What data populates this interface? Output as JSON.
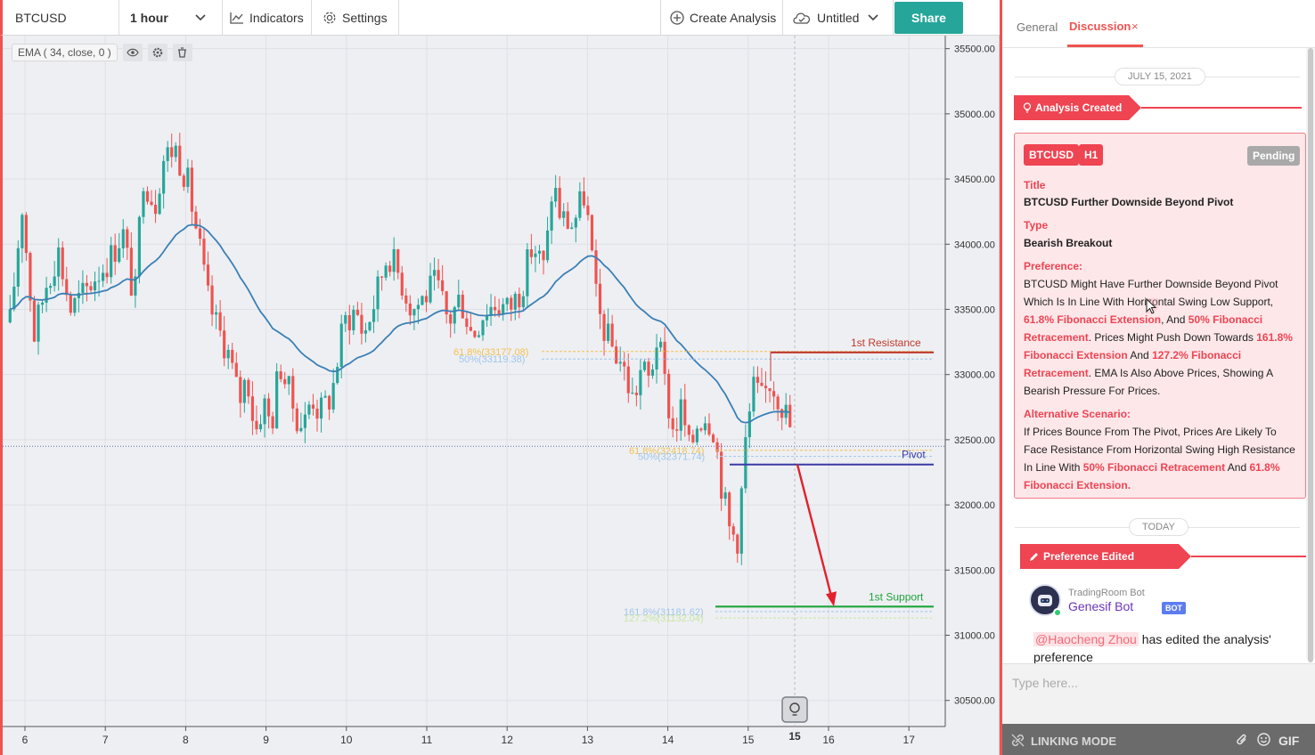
{
  "toolbar": {
    "symbol": "BTCUSD",
    "interval": "1 hour",
    "indicators_label": "Indicators",
    "settings_label": "Settings",
    "create_analysis_label": "Create Analysis",
    "layout_name": "Untitled",
    "share_label": "Share"
  },
  "indicator_legend": {
    "ema_label": "EMA ( 34, close, 0 )"
  },
  "chart_data": {
    "type": "candlestick",
    "symbol": "BTCUSD",
    "interval": "1 hour",
    "price_axis_ticks": [
      "35500.00",
      "35000.00",
      "34500.00",
      "34000.00",
      "33500.00",
      "33000.00",
      "32500.00",
      "32000.00",
      "31500.00",
      "31000.00",
      "30500.00"
    ],
    "price_axis_values": [
      35500,
      35000,
      34500,
      34000,
      33500,
      33000,
      32500,
      32000,
      31500,
      31000,
      30500
    ],
    "x_axis_ticks": [
      "6",
      "7",
      "8",
      "9",
      "10",
      "11",
      "12",
      "13",
      "14",
      "15",
      "16",
      "17"
    ],
    "x_axis_highlight": "15",
    "ylim": [
      30300,
      35600
    ],
    "ohlc_path": [
      [
        0,
        33400
      ],
      [
        3,
        34300
      ],
      [
        6,
        33300
      ],
      [
        9,
        33700
      ],
      [
        12,
        33950
      ],
      [
        15,
        33500
      ],
      [
        18,
        33600
      ],
      [
        21,
        33750
      ],
      [
        25,
        33900
      ],
      [
        28,
        34100
      ],
      [
        31,
        33550
      ],
      [
        33,
        34550
      ],
      [
        36,
        34300
      ],
      [
        38,
        34650
      ],
      [
        41,
        34750
      ],
      [
        44,
        34500
      ],
      [
        47,
        34000
      ],
      [
        49,
        33600
      ],
      [
        51,
        33400
      ],
      [
        54,
        33200
      ],
      [
        57,
        32800
      ],
      [
        59,
        33000
      ],
      [
        61,
        32550
      ],
      [
        63,
        32800
      ],
      [
        65,
        32600
      ],
      [
        67,
        33100
      ],
      [
        69,
        32900
      ],
      [
        71,
        32700
      ],
      [
        73,
        32600
      ],
      [
        75,
        32850
      ],
      [
        77,
        32700
      ],
      [
        80,
        32850
      ],
      [
        83,
        33400
      ],
      [
        86,
        33500
      ],
      [
        88,
        33300
      ],
      [
        91,
        33600
      ],
      [
        94,
        33950
      ],
      [
        97,
        33750
      ],
      [
        100,
        33500
      ],
      [
        103,
        33600
      ],
      [
        106,
        33700
      ],
      [
        109,
        33400
      ],
      [
        112,
        33600
      ],
      [
        115,
        33300
      ],
      [
        118,
        33500
      ],
      [
        121,
        33550
      ],
      [
        124,
        33500
      ],
      [
        127,
        33650
      ],
      [
        130,
        34000
      ],
      [
        133,
        33800
      ],
      [
        135,
        34500
      ],
      [
        137,
        34200
      ],
      [
        140,
        34150
      ],
      [
        143,
        34400
      ],
      [
        146,
        33500
      ],
      [
        149,
        33250
      ],
      [
        152,
        33100
      ],
      [
        155,
        32800
      ],
      [
        157,
        33050
      ],
      [
        159,
        32950
      ],
      [
        161,
        33300
      ],
      [
        163,
        32900
      ],
      [
        165,
        32550
      ],
      [
        167,
        32750
      ],
      [
        169,
        32400
      ],
      [
        171,
        32650
      ],
      [
        173,
        32700
      ],
      [
        175,
        32600
      ],
      [
        177,
        32150
      ],
      [
        179,
        31800
      ],
      [
        181,
        31750
      ],
      [
        183,
        32500
      ],
      [
        185,
        32900
      ],
      [
        187,
        32800
      ],
      [
        189,
        32950
      ],
      [
        191,
        32850
      ],
      [
        193,
        32700
      ],
      [
        194,
        32600
      ],
      [
        195,
        32450
      ]
    ],
    "ema_period": 34,
    "series": [
      {
        "name": "EMA ( 34, close, 0 )",
        "color": "#3a80b5"
      }
    ],
    "levels": [
      {
        "label": "1st Resistance",
        "price": 33170,
        "color": "#c0392b"
      },
      {
        "label": "Pivot",
        "price": 32310,
        "color": "#3b3ba5"
      },
      {
        "label": "1st Support",
        "price": 31220,
        "color": "#1ea53a"
      }
    ],
    "fib_labels": [
      {
        "text": "61.8%(33177.08)",
        "price": 33177.08,
        "color": "#f2c14e"
      },
      {
        "text": "50%(33119.38)",
        "price": 33119.38,
        "color": "#9fc6ea"
      },
      {
        "text": "61.8%(32418.74)",
        "price": 32418.74,
        "color": "#f2c14e"
      },
      {
        "text": "50%(32371.74)",
        "price": 32371.74,
        "color": "#9fc6ea"
      },
      {
        "text": "161.8%(31181.62)",
        "price": 31181.62,
        "color": "#9fc6ea"
      },
      {
        "text": "127.2%(31132.04)",
        "price": 31132.04,
        "color": "#c8e6a0"
      }
    ],
    "current_price": 32450,
    "colors": {
      "up": "#26a69a",
      "down": "#ef5350",
      "arrow": "#e3202c",
      "background": "#eeeff3"
    }
  },
  "panel": {
    "tabs": [
      {
        "label": "General"
      },
      {
        "label": "Discussion"
      }
    ],
    "close_glyph": "×",
    "date_1": "JULY 15, 2021",
    "event_1": "Analysis Created",
    "card": {
      "symbol_badge": "BTCUSD",
      "timeframe_badge": "H1",
      "status": "Pending",
      "title_label": "Title",
      "title": "BTCUSD Further Downside Beyond Pivot",
      "type_label": "Type",
      "type": "Bearish Breakout",
      "preference_label": "Preference:",
      "preference_parts": [
        "BTCUSD Might Have Further Downside Beyond Pivot Which Is In Line With Horizontal Swing Low Support, ",
        "61.8% Fibonacci Extension",
        ", And ",
        "50% Fibonacci Retracement",
        ". Prices Might Push Down Towards ",
        "161.8% Fibonacci Extension",
        " And ",
        "127.2% Fibonacci Retracement",
        ". EMA Is Also Above Prices, Showing A Bearish Pressure For Prices."
      ],
      "alternative_label": "Alternative Scenario:",
      "alternative_parts": [
        "If Prices Bounce From The Pivot, Prices Are Likely To Face Resistance From Horizontal Swing High Resistance In Line With ",
        "50% Fibonacci Retracement",
        " And ",
        "61.8% Fibonacci Extension."
      ]
    },
    "date_2": "TODAY",
    "event_2": "Preference Edited",
    "bot": {
      "small_name": "TradingRoom Bot",
      "name": "Genesif Bot",
      "tag": "BOT",
      "mention": "@Haocheng Zhou",
      "message": " has edited the analysis' preference"
    },
    "input_placeholder": "Type here...",
    "linking_mode": "LINKING MODE",
    "gif_label": "GIF"
  }
}
